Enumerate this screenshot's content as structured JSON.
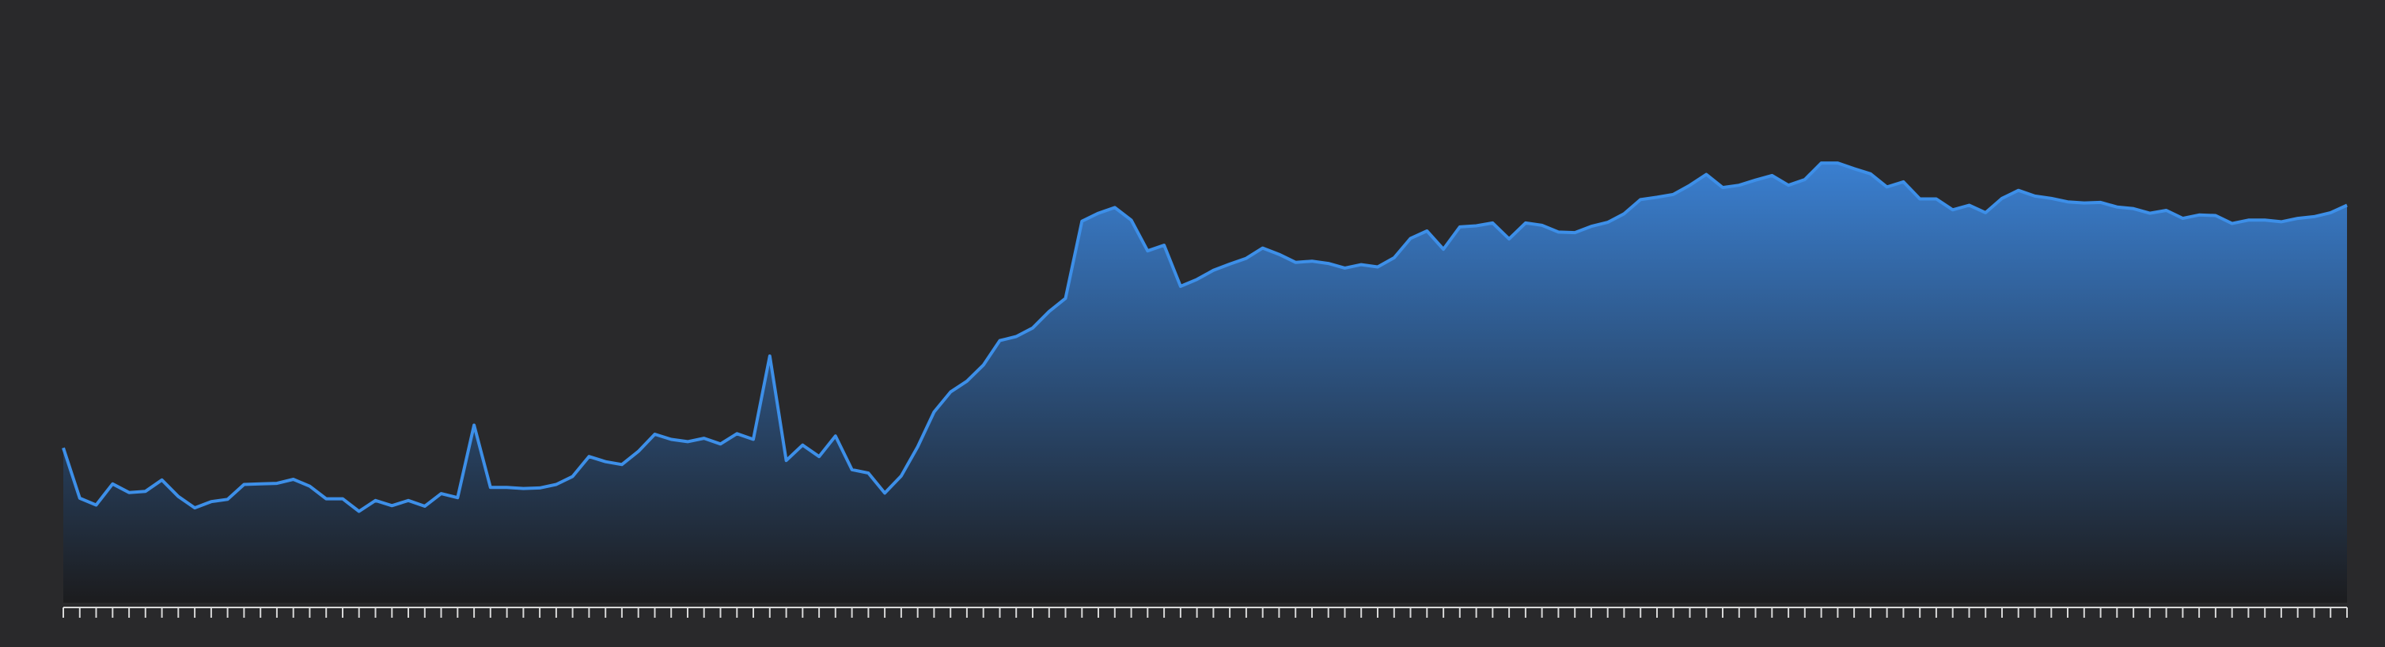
{
  "colors": {
    "background": "#29292b",
    "line": "#3d8fe8",
    "fill_top": "#3a7fd0",
    "fill_bottom": "#1c1c1e",
    "axis": "#d8d8d8"
  },
  "chart_data": {
    "type": "area",
    "title": "",
    "xlabel": "",
    "ylabel": "",
    "x": [
      0,
      1,
      2,
      3,
      4,
      5,
      6,
      7,
      8,
      9,
      10,
      11,
      12,
      13,
      14,
      15,
      16,
      17,
      18,
      19,
      20,
      21,
      22,
      23,
      24,
      25,
      26,
      27,
      28,
      29,
      30,
      31,
      32,
      33,
      34,
      35,
      36,
      37,
      38,
      39,
      40,
      41,
      42,
      43,
      44,
      45,
      46,
      47,
      48,
      49,
      50,
      51,
      52,
      53,
      54,
      55,
      56,
      57,
      58,
      59,
      60,
      61,
      62,
      63,
      64,
      65,
      66,
      67,
      68,
      69,
      70,
      71,
      72,
      73,
      74,
      75,
      76,
      77,
      78,
      79,
      80,
      81,
      82,
      83,
      84,
      85,
      86,
      87,
      88,
      89,
      90,
      91,
      92,
      93,
      94,
      95,
      96,
      97,
      98,
      99,
      100,
      101,
      102,
      103,
      104,
      105,
      106,
      107,
      108,
      109,
      110,
      111,
      112,
      113,
      114,
      115,
      116,
      117,
      118,
      119,
      120,
      121,
      122,
      123,
      124,
      125,
      126,
      127,
      128,
      129,
      130,
      131,
      132,
      133,
      134,
      135,
      136,
      137,
      138,
      139
    ],
    "values": [
      27.1,
      18.3,
      17.1,
      20.8,
      19.3,
      19.5,
      21.5,
      18.6,
      16.6,
      17.7,
      18.1,
      20.7,
      20.8,
      20.9,
      21.6,
      20.4,
      18.2,
      18.2,
      16.0,
      17.9,
      17.0,
      17.9,
      16.9,
      19.1,
      18.4,
      31.1,
      20.2,
      20.2,
      20.0,
      20.1,
      20.7,
      22.1,
      25.6,
      24.7,
      24.2,
      26.5,
      29.5,
      28.6,
      28.2,
      28.8,
      27.8,
      29.6,
      28.6,
      43.2,
      24.9,
      27.6,
      25.6,
      29.2,
      23.3,
      22.7,
      19.2,
      22.2,
      27.3,
      33.4,
      36.9,
      38.8,
      41.6,
      45.9,
      46.6,
      48.1,
      51.0,
      53.3,
      66.8,
      68.2,
      69.2,
      67.0,
      61.6,
      62.6,
      55.4,
      56.6,
      58.2,
      59.3,
      60.3,
      62.1,
      61.0,
      59.6,
      59.8,
      59.4,
      58.6,
      59.2,
      58.8,
      60.4,
      63.8,
      65.1,
      61.9,
      65.8,
      66.0,
      66.5,
      63.7,
      66.5,
      66.1,
      64.9,
      64.8,
      65.9,
      66.6,
      68.1,
      70.6,
      71.0,
      71.5,
      73.1,
      75.0,
      72.7,
      73.1,
      74.0,
      74.8,
      73.1,
      74.1,
      77.0,
      77.0,
      76.0,
      75.1,
      72.8,
      73.7,
      70.7,
      70.7,
      68.8,
      69.6,
      68.3,
      70.8,
      72.2,
      71.2,
      70.8,
      70.2,
      70.0,
      70.1,
      69.3,
      69.0,
      68.2,
      68.7,
      67.3,
      67.9,
      67.8,
      66.4,
      67.0,
      67.0,
      66.7,
      67.3,
      67.6,
      68.3,
      69.6
    ],
    "ylim": [
      0,
      100
    ],
    "xlim": [
      0,
      139
    ],
    "tick_count": 140,
    "grid": false,
    "legend": "none"
  }
}
